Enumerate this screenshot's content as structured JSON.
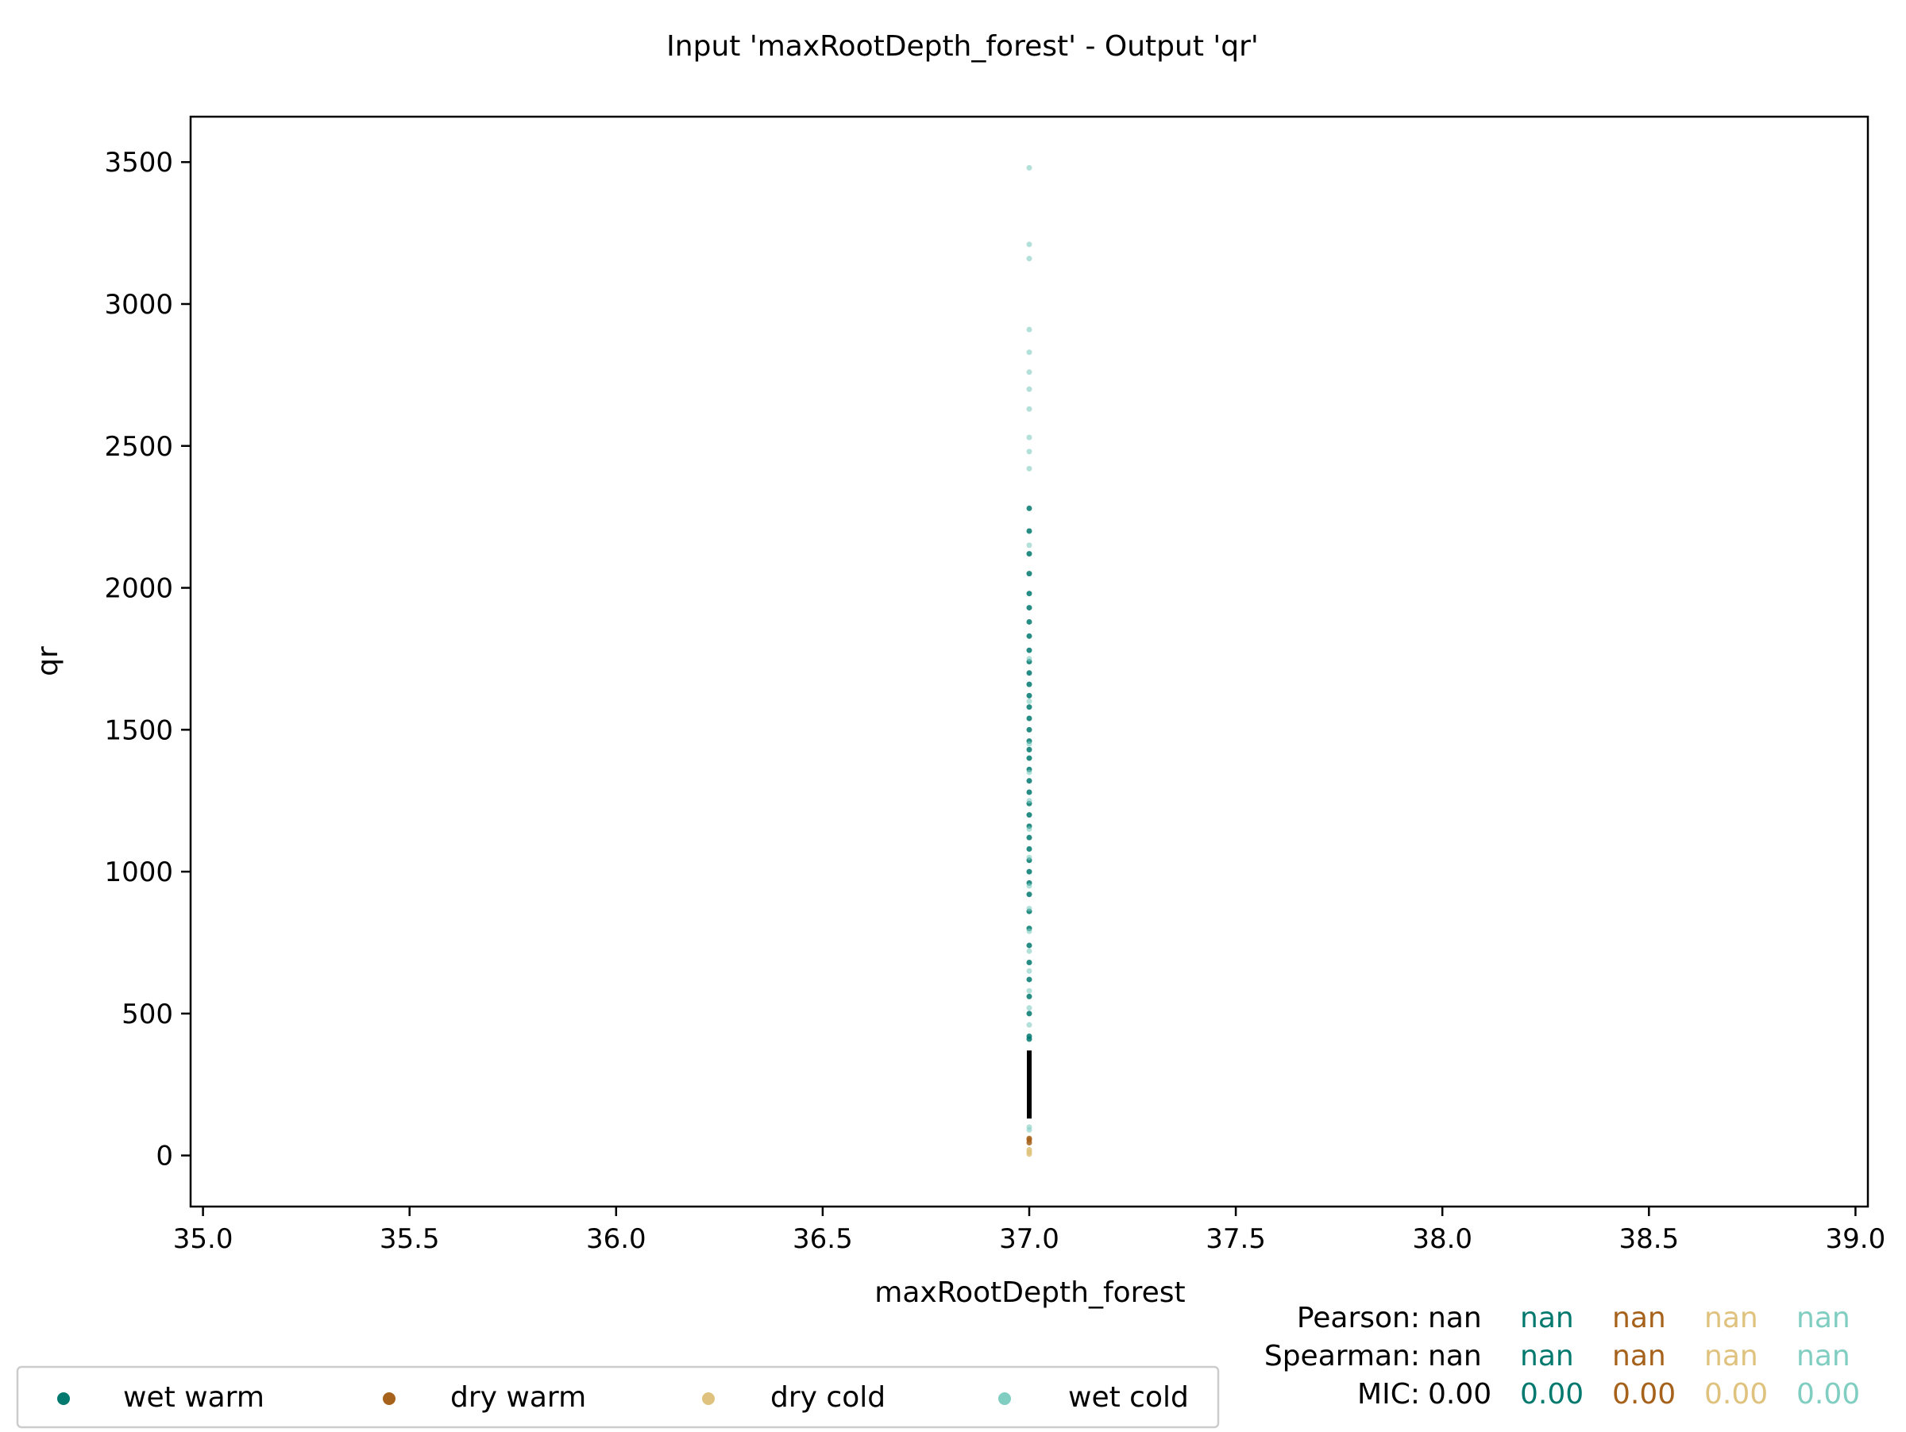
{
  "chart_data": {
    "type": "scatter",
    "title": "Input 'maxRootDepth_forest' - Output 'qr'",
    "xlabel": "maxRootDepth_forest",
    "ylabel": "qr",
    "xlim": [
      34.97,
      39.03
    ],
    "ylim": [
      -180,
      3660
    ],
    "xticks": [
      35.0,
      35.5,
      36.0,
      36.5,
      37.0,
      37.5,
      38.0,
      38.5,
      39.0
    ],
    "xtick_labels": [
      "35.0",
      "35.5",
      "36.0",
      "36.5",
      "37.0",
      "37.5",
      "38.0",
      "38.5",
      "39.0"
    ],
    "yticks": [
      0,
      500,
      1000,
      1500,
      2000,
      2500,
      3000,
      3500
    ],
    "ytick_labels": [
      "0",
      "500",
      "1000",
      "1500",
      "2000",
      "2500",
      "3000",
      "3500"
    ],
    "grid": false,
    "legend_position": "bottom-left",
    "series": [
      {
        "name": "wet warm",
        "color": "#01796f",
        "x": [
          37.0,
          37.0,
          37.0,
          37.0,
          37.0,
          37.0,
          37.0,
          37.0,
          37.0,
          37.0,
          37.0,
          37.0,
          37.0,
          37.0,
          37.0,
          37.0,
          37.0,
          37.0,
          37.0,
          37.0,
          37.0,
          37.0,
          37.0,
          37.0,
          37.0,
          37.0,
          37.0,
          37.0,
          37.0,
          37.0,
          37.0,
          37.0,
          37.0,
          37.0,
          37.0,
          37.0,
          37.0,
          37.0,
          37.0,
          37.0
        ],
        "y": [
          410,
          420,
          500,
          560,
          620,
          680,
          740,
          800,
          860,
          920,
          960,
          1000,
          1040,
          1080,
          1120,
          1160,
          1200,
          1240,
          1280,
          1320,
          1360,
          1400,
          1430,
          1460,
          1500,
          1540,
          1580,
          1620,
          1660,
          1700,
          1740,
          1780,
          1830,
          1880,
          1930,
          1980,
          2050,
          2120,
          2200,
          2280
        ]
      },
      {
        "name": "dry warm",
        "color": "#a6611a",
        "x": [
          37.0,
          37.0,
          37.0
        ],
        "y": [
          45,
          55,
          60
        ]
      },
      {
        "name": "dry cold",
        "color": "#dfc27d",
        "x": [
          37.0,
          37.0,
          37.0
        ],
        "y": [
          5,
          12,
          20
        ]
      },
      {
        "name": "wet cold",
        "color": "#80cdc1",
        "x": [
          37.0,
          37.0,
          37.0,
          37.0,
          37.0,
          37.0,
          37.0,
          37.0,
          37.0,
          37.0,
          37.0,
          37.0,
          37.0,
          37.0,
          37.0,
          37.0,
          37.0,
          37.0,
          37.0,
          37.0,
          37.0,
          37.0,
          37.0,
          37.0,
          37.0,
          37.0,
          37.0,
          37.0,
          37.0
        ],
        "y": [
          90,
          100,
          460,
          520,
          580,
          650,
          720,
          790,
          870,
          950,
          1050,
          1150,
          1250,
          1350,
          1450,
          1600,
          1750,
          2150,
          2420,
          2480,
          2530,
          2630,
          2700,
          2760,
          2830,
          2910,
          3160,
          3210,
          3480
        ]
      }
    ],
    "black_segment": {
      "color": "#000000",
      "x": 37.0,
      "y_from": 130,
      "y_to": 370
    },
    "stats": {
      "labels": [
        "Pearson:",
        "Spearman:",
        "MIC:"
      ],
      "columns": [
        {
          "color": "#000000",
          "values": [
            "nan",
            "nan",
            "0.00"
          ]
        },
        {
          "color": "#01796f",
          "values": [
            "nan",
            "nan",
            "0.00"
          ]
        },
        {
          "color": "#a6611a",
          "values": [
            "nan",
            "nan",
            "0.00"
          ]
        },
        {
          "color": "#dfc27d",
          "values": [
            "nan",
            "nan",
            "0.00"
          ]
        },
        {
          "color": "#80cdc1",
          "values": [
            "nan",
            "nan",
            "0.00"
          ]
        }
      ]
    }
  }
}
